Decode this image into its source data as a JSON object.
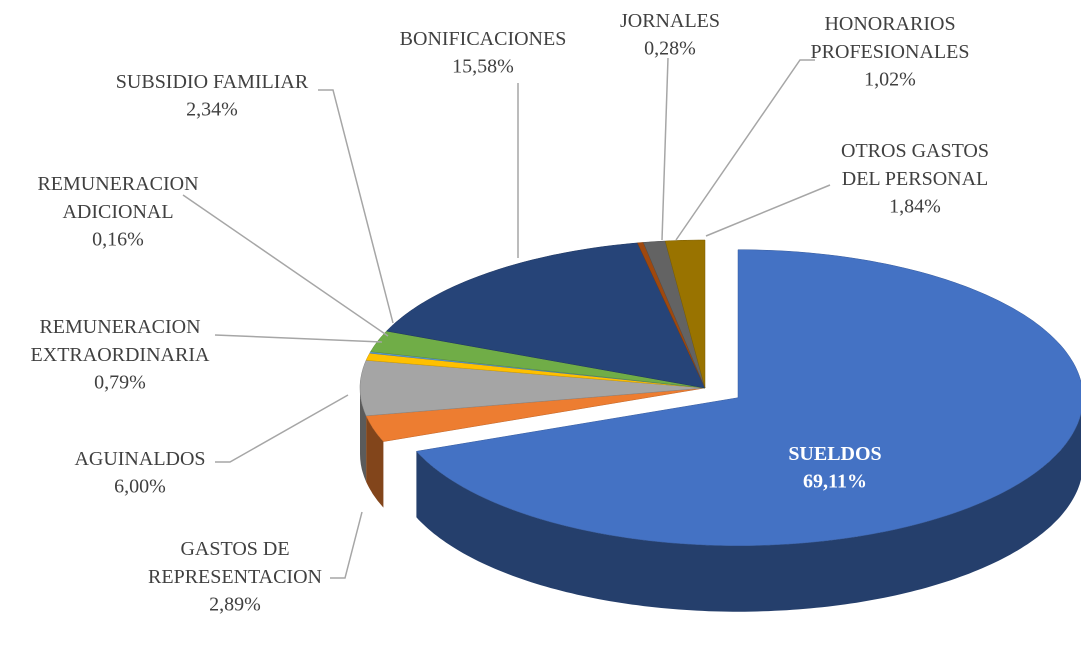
{
  "chart_data": {
    "type": "pie3d",
    "categories": [
      "SUELDOS",
      "GASTOS DE REPRESENTACION",
      "AGUINALDOS",
      "REMUNERACION EXTRAORDINARIA",
      "REMUNERACION ADICIONAL",
      "SUBSIDIO FAMILIAR",
      "BONIFICACIONES",
      "JORNALES",
      "HONORARIOS PROFESIONALES",
      "OTROS GASTOS DEL PERSONAL"
    ],
    "values": [
      69.11,
      2.89,
      6.0,
      0.79,
      0.16,
      2.34,
      15.58,
      0.28,
      1.02,
      1.84
    ],
    "value_labels": [
      "69,11%",
      "2,89%",
      "6,00%",
      "0,79%",
      "0,16%",
      "2,34%",
      "15,58%",
      "0,28%",
      "1,02%",
      "1,84%"
    ],
    "colors": [
      "#4472c4",
      "#ed7d31",
      "#a5a5a5",
      "#ffc000",
      "#5b9bd5",
      "#70ad47",
      "#264478",
      "#9e480e",
      "#636363",
      "#997300"
    ]
  }
}
